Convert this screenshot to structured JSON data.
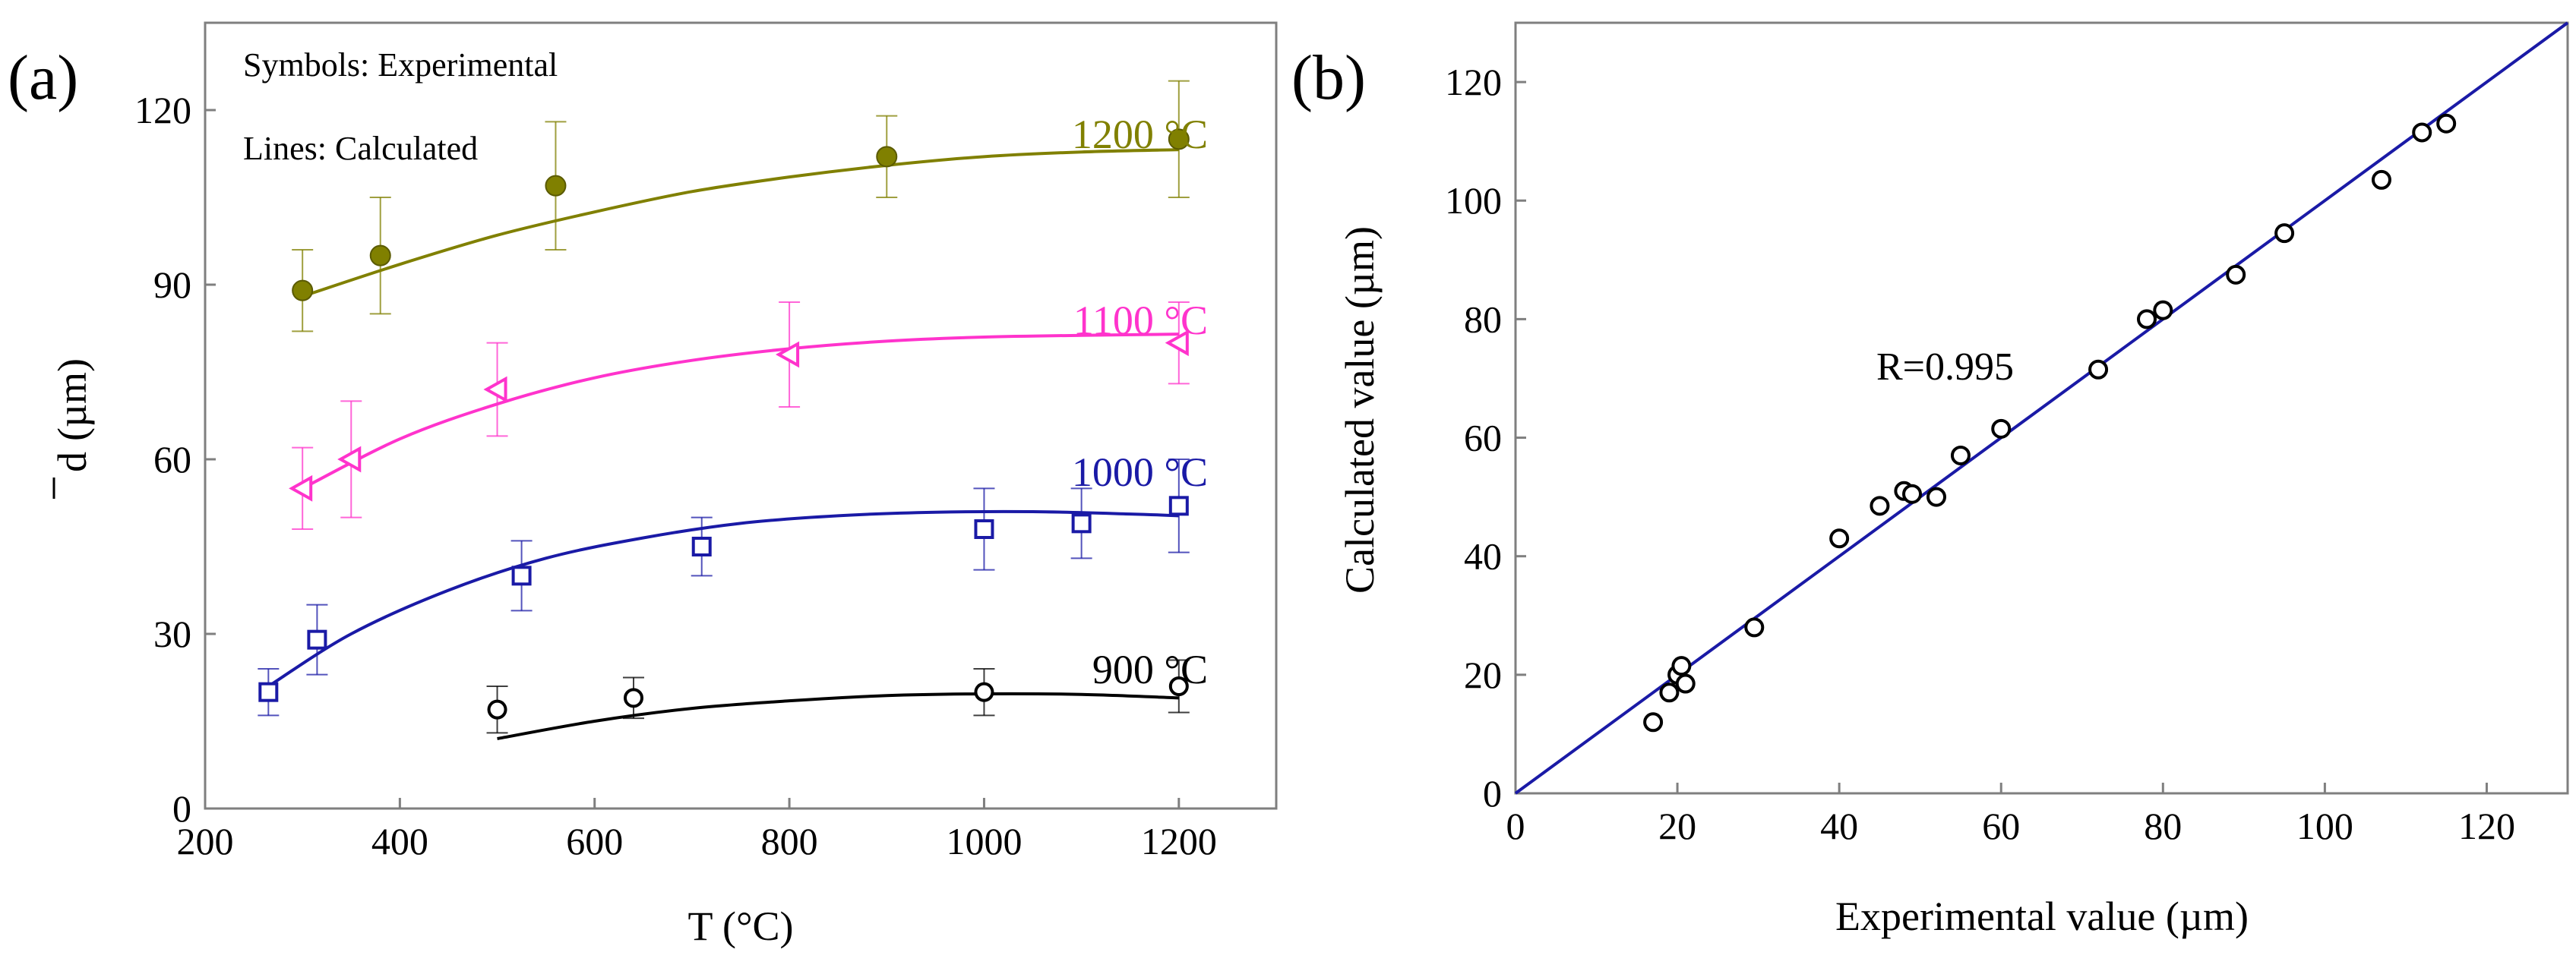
{
  "chart_data": [
    {
      "panel_label": "(a)",
      "type": "scatter",
      "title": "",
      "xlabel": "T (°C)",
      "ylabel": "d (µm)",
      "ylabel_symbol": "d",
      "ylabel_unit": "(µm)",
      "xlim": [
        200,
        1300
      ],
      "ylim": [
        0,
        135
      ],
      "xticks": [
        200,
        400,
        600,
        800,
        1000,
        1200
      ],
      "yticks": [
        0,
        30,
        60,
        90,
        120
      ],
      "legend_note": [
        "Symbols: Experimental",
        "Lines: Calculated"
      ],
      "series": [
        {
          "name": "1200 °C",
          "color": "#808000",
          "marker": "filled-circle",
          "x": [
            300,
            380,
            560,
            900,
            1200
          ],
          "y": [
            89,
            95,
            107,
            112,
            115
          ],
          "err": [
            7,
            10,
            11,
            7,
            10
          ],
          "fit_x": [
            300,
            400,
            500,
            600,
            700,
            800,
            900,
            1000,
            1100,
            1200
          ],
          "fit_y": [
            88,
            93.5,
            98.5,
            102.5,
            106,
            108.5,
            110.5,
            112,
            112.8,
            113.2
          ]
        },
        {
          "name": "1100 °C",
          "color": "#ff33cc",
          "marker": "left-triangle",
          "x": [
            300,
            350,
            500,
            800,
            1200
          ],
          "y": [
            55,
            60,
            72,
            78,
            80
          ],
          "err": [
            7,
            10,
            8,
            9,
            7
          ],
          "fit_x": [
            300,
            400,
            500,
            600,
            700,
            800,
            900,
            1000,
            1100,
            1200
          ],
          "fit_y": [
            55,
            63.5,
            69.5,
            74,
            77,
            79,
            80.3,
            81,
            81.3,
            81.5
          ]
        },
        {
          "name": "1000 °C",
          "color": "#1a1aa6",
          "marker": "open-square",
          "x": [
            265,
            315,
            525,
            710,
            1000,
            1100,
            1200
          ],
          "y": [
            20,
            29,
            40,
            45,
            48,
            49,
            52
          ],
          "err": [
            4,
            6,
            6,
            5,
            7,
            6,
            8
          ],
          "fit_x": [
            265,
            350,
            450,
            550,
            650,
            750,
            850,
            950,
            1050,
            1150,
            1200
          ],
          "fit_y": [
            21,
            30,
            37.5,
            43,
            46.5,
            49,
            50.3,
            50.9,
            51,
            50.6,
            50.3
          ]
        },
        {
          "name": "900 °C",
          "color": "#000000",
          "marker": "open-circle",
          "x": [
            500,
            640,
            1000,
            1200
          ],
          "y": [
            17,
            19,
            20,
            21
          ],
          "err": [
            4,
            3.5,
            4,
            4.5
          ],
          "fit_x": [
            500,
            600,
            700,
            800,
            900,
            1000,
            1100,
            1200
          ],
          "fit_y": [
            12,
            15,
            17.2,
            18.5,
            19.4,
            19.7,
            19.6,
            19
          ]
        }
      ]
    },
    {
      "panel_label": "(b)",
      "type": "scatter",
      "title": "",
      "xlabel": "Experimental value (µm)",
      "ylabel": "Calculated value (µm)",
      "xlim": [
        0,
        130
      ],
      "ylim": [
        0,
        130
      ],
      "xticks": [
        0,
        20,
        40,
        60,
        80,
        100,
        120
      ],
      "yticks": [
        0,
        20,
        40,
        60,
        80,
        100,
        120
      ],
      "annotation": "R=0.995",
      "line_color": "#1a1aa6",
      "line": {
        "x": [
          0,
          130
        ],
        "y": [
          0,
          130
        ]
      },
      "points": {
        "x": [
          17,
          19,
          20,
          20.5,
          21,
          29.5,
          40,
          45,
          48,
          49,
          52,
          55,
          60,
          72,
          78,
          80,
          89,
          95,
          107,
          112,
          115
        ],
        "y": [
          12,
          17,
          20,
          21.5,
          18.5,
          28,
          43,
          48.5,
          51,
          50.5,
          50,
          57,
          61.5,
          71.5,
          80,
          81.5,
          87.5,
          94.5,
          103.5,
          111.5,
          113
        ]
      }
    }
  ]
}
